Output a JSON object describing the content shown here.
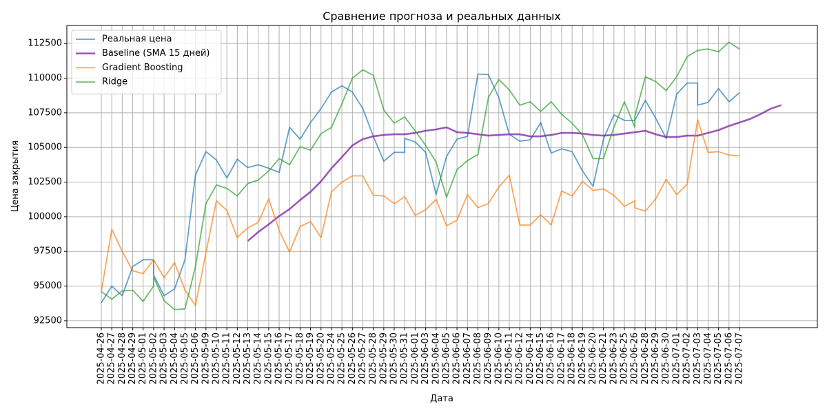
{
  "chart_data": {
    "type": "line",
    "title": "Сравнение прогноза и реальных данных",
    "xlabel": "Дата",
    "ylabel": "Цена закрытия",
    "ylim": [
      92000,
      113800
    ],
    "yticks": [
      92500,
      95000,
      97500,
      100000,
      102500,
      105000,
      107500,
      110000,
      112500
    ],
    "grid": true,
    "legend_position": "upper-left",
    "x_labels": [
      "2025-04-26",
      "2025-04-27",
      "2025-04-28",
      "2025-04-29",
      "2025-05-01",
      "2025-05-02",
      "2025-05-03",
      "2025-05-04",
      "2025-05-05",
      "2025-05-06",
      "2025-05-09",
      "2025-05-10",
      "2025-05-11",
      "2025-05-12",
      "2025-05-13",
      "2025-05-14",
      "2025-05-15",
      "2025-05-16",
      "2025-05-17",
      "2025-05-18",
      "2025-05-19",
      "2025-05-20",
      "2025-05-24",
      "2025-05-25",
      "2025-05-26",
      "2025-05-27",
      "2025-05-28",
      "2025-05-29",
      "2025-05-30",
      "2025-05-31",
      "2025-06-01",
      "2025-06-03",
      "2025-06-04",
      "2025-06-05",
      "2025-06-06",
      "2025-06-07",
      "2025-06-08",
      "2025-06-09",
      "2025-06-10",
      "2025-06-11",
      "2025-06-12",
      "2025-06-14",
      "2025-06-15",
      "2025-06-16",
      "2025-06-17",
      "2025-06-18",
      "2025-06-19",
      "2025-06-20",
      "2025-06-21",
      "2025-06-23",
      "2025-06-25",
      "2025-06-26",
      "2025-06-28",
      "2025-06-29",
      "2025-06-30",
      "2025-07-01",
      "2025-07-02",
      "2025-07-03",
      "2025-07-04",
      "2025-07-05",
      "2025-07-06",
      "2025-07-07"
    ],
    "x_min": 0,
    "x_max": 67.5,
    "series": [
      {
        "name": "Реальная цена",
        "color": "#1f77b4",
        "opacity": 0.7,
        "width": 1.8,
        "points": [
          [
            0,
            93800
          ],
          [
            1,
            95000
          ],
          [
            2,
            94300
          ],
          [
            3,
            96400
          ],
          [
            4,
            96900
          ],
          [
            5,
            96900
          ],
          [
            5,
            95800
          ],
          [
            6,
            94300
          ],
          [
            7,
            94800
          ],
          [
            8,
            96900
          ],
          [
            9,
            103000
          ],
          [
            10,
            104700
          ],
          [
            11,
            104100
          ],
          [
            12,
            102800
          ],
          [
            13,
            104150
          ],
          [
            14,
            103550
          ],
          [
            15,
            103750
          ],
          [
            16,
            103500
          ],
          [
            17,
            103200
          ],
          [
            18,
            106450
          ],
          [
            19,
            105600
          ],
          [
            20,
            106800
          ],
          [
            21,
            107800
          ],
          [
            22,
            109000
          ],
          [
            23,
            109450
          ],
          [
            24,
            109000
          ],
          [
            25,
            107800
          ],
          [
            26,
            105800
          ],
          [
            27,
            104000
          ],
          [
            28,
            104650
          ],
          [
            29,
            104650
          ],
          [
            29,
            105650
          ],
          [
            30,
            105400
          ],
          [
            31,
            104650
          ],
          [
            32,
            101600
          ],
          [
            33,
            104350
          ],
          [
            34,
            105600
          ],
          [
            35,
            105800
          ],
          [
            36,
            110300
          ],
          [
            37,
            110250
          ],
          [
            38,
            108600
          ],
          [
            39,
            105950
          ],
          [
            40,
            105450
          ],
          [
            41,
            105550
          ],
          [
            42,
            106800
          ],
          [
            43,
            104600
          ],
          [
            44,
            104900
          ],
          [
            45,
            104700
          ],
          [
            46,
            103300
          ],
          [
            47,
            102200
          ],
          [
            48,
            105600
          ],
          [
            49,
            107350
          ],
          [
            50,
            106950
          ],
          [
            51,
            106950
          ],
          [
            52,
            108400
          ],
          [
            53,
            107100
          ],
          [
            54,
            105650
          ],
          [
            55,
            108850
          ],
          [
            56,
            109650
          ],
          [
            57,
            109650
          ],
          [
            57,
            108050
          ],
          [
            58,
            108250
          ],
          [
            59,
            109250
          ],
          [
            60,
            108300
          ],
          [
            61,
            108950
          ]
        ]
      },
      {
        "name": "Baseline (SMA 15 дней)",
        "color": "#7b1fa2",
        "opacity": 0.75,
        "width": 2.6,
        "points": [
          [
            14,
            98250
          ],
          [
            15,
            98900
          ],
          [
            16,
            99450
          ],
          [
            17,
            100050
          ],
          [
            18,
            100550
          ],
          [
            19,
            101200
          ],
          [
            20,
            101800
          ],
          [
            21,
            102550
          ],
          [
            22,
            103500
          ],
          [
            23,
            104300
          ],
          [
            24,
            105150
          ],
          [
            25,
            105600
          ],
          [
            26,
            105800
          ],
          [
            27,
            105900
          ],
          [
            28,
            105950
          ],
          [
            29,
            105950
          ],
          [
            30,
            106050
          ],
          [
            31,
            106200
          ],
          [
            32,
            106300
          ],
          [
            33,
            106450
          ],
          [
            34,
            106100
          ],
          [
            35,
            106050
          ],
          [
            36,
            105950
          ],
          [
            37,
            105850
          ],
          [
            38,
            105900
          ],
          [
            39,
            105950
          ],
          [
            40,
            105950
          ],
          [
            41,
            105800
          ],
          [
            42,
            105800
          ],
          [
            43,
            105900
          ],
          [
            44,
            106050
          ],
          [
            45,
            106050
          ],
          [
            46,
            106000
          ],
          [
            47,
            105900
          ],
          [
            48,
            105850
          ],
          [
            49,
            105900
          ],
          [
            50,
            106000
          ],
          [
            51,
            106100
          ],
          [
            52,
            106200
          ],
          [
            53,
            105950
          ],
          [
            54,
            105750
          ],
          [
            55,
            105750
          ],
          [
            56,
            105850
          ],
          [
            57,
            105850
          ],
          [
            58,
            106050
          ],
          [
            59,
            106250
          ],
          [
            60,
            106550
          ],
          [
            61,
            106800
          ],
          [
            62,
            107050
          ],
          [
            63,
            107400
          ],
          [
            64,
            107800
          ],
          [
            65,
            108050
          ]
        ]
      },
      {
        "name": "Gradient Boosting",
        "color": "#ff7f0e",
        "opacity": 0.7,
        "width": 1.8,
        "points": [
          [
            0,
            94600
          ],
          [
            1,
            99100
          ],
          [
            2,
            97500
          ],
          [
            3,
            96100
          ],
          [
            4,
            95900
          ],
          [
            5,
            96900
          ],
          [
            6,
            95600
          ],
          [
            7,
            96700
          ],
          [
            8,
            94700
          ],
          [
            9,
            93600
          ],
          [
            10,
            97400
          ],
          [
            11,
            101150
          ],
          [
            12,
            100450
          ],
          [
            13,
            98500
          ],
          [
            14,
            99200
          ],
          [
            15,
            99600
          ],
          [
            16,
            101300
          ],
          [
            17,
            99000
          ],
          [
            18,
            97450
          ],
          [
            19,
            99300
          ],
          [
            20,
            99650
          ],
          [
            21,
            98500
          ],
          [
            22,
            101800
          ],
          [
            23,
            102500
          ],
          [
            24,
            102950
          ],
          [
            25,
            102950
          ],
          [
            26,
            101550
          ],
          [
            27,
            101500
          ],
          [
            28,
            100950
          ],
          [
            29,
            101450
          ],
          [
            30,
            100100
          ],
          [
            31,
            100500
          ],
          [
            32,
            101250
          ],
          [
            33,
            99350
          ],
          [
            34,
            99750
          ],
          [
            35,
            101600
          ],
          [
            36,
            100650
          ],
          [
            37,
            100950
          ],
          [
            38,
            102150
          ],
          [
            39,
            103000
          ],
          [
            40,
            99400
          ],
          [
            41,
            99400
          ],
          [
            42,
            100150
          ],
          [
            43,
            99400
          ],
          [
            44,
            101850
          ],
          [
            45,
            101500
          ],
          [
            46,
            102550
          ],
          [
            47,
            101900
          ],
          [
            48,
            102000
          ],
          [
            49,
            101550
          ],
          [
            50,
            100750
          ],
          [
            51,
            101150
          ],
          [
            51,
            100650
          ],
          [
            52,
            100400
          ],
          [
            53,
            101300
          ],
          [
            54,
            102700
          ],
          [
            55,
            101600
          ],
          [
            56,
            102350
          ],
          [
            57,
            107000
          ],
          [
            58,
            104650
          ],
          [
            59,
            104700
          ],
          [
            60,
            104450
          ],
          [
            61,
            104400
          ]
        ]
      },
      {
        "name": "Ridge",
        "color": "#2ca02c",
        "opacity": 0.7,
        "width": 1.8,
        "points": [
          [
            0,
            94600
          ],
          [
            1,
            94050
          ],
          [
            2,
            94650
          ],
          [
            3,
            94700
          ],
          [
            4,
            93900
          ],
          [
            5,
            95000
          ],
          [
            5,
            95650
          ],
          [
            6,
            93950
          ],
          [
            7,
            93300
          ],
          [
            8,
            93350
          ],
          [
            9,
            96400
          ],
          [
            10,
            100950
          ],
          [
            11,
            102300
          ],
          [
            12,
            102050
          ],
          [
            13,
            101500
          ],
          [
            14,
            102400
          ],
          [
            15,
            102650
          ],
          [
            16,
            103300
          ],
          [
            17,
            104200
          ],
          [
            18,
            103750
          ],
          [
            19,
            105050
          ],
          [
            20,
            104800
          ],
          [
            21,
            106000
          ],
          [
            22,
            106450
          ],
          [
            23,
            108150
          ],
          [
            24,
            110000
          ],
          [
            25,
            110600
          ],
          [
            26,
            110200
          ],
          [
            27,
            107700
          ],
          [
            28,
            106750
          ],
          [
            29,
            107200
          ],
          [
            30,
            106200
          ],
          [
            31,
            105150
          ],
          [
            32,
            103950
          ],
          [
            33,
            101400
          ],
          [
            34,
            103400
          ],
          [
            35,
            104050
          ],
          [
            36,
            104500
          ],
          [
            37,
            108600
          ],
          [
            38,
            109900
          ],
          [
            39,
            109150
          ],
          [
            40,
            108050
          ],
          [
            41,
            108300
          ],
          [
            42,
            107600
          ],
          [
            43,
            108300
          ],
          [
            44,
            107400
          ],
          [
            45,
            106750
          ],
          [
            46,
            105900
          ],
          [
            47,
            104200
          ],
          [
            48,
            104200
          ],
          [
            49,
            106450
          ],
          [
            50,
            108300
          ],
          [
            51,
            106450
          ],
          [
            51,
            107250
          ],
          [
            52,
            110100
          ],
          [
            53,
            109750
          ],
          [
            54,
            109100
          ],
          [
            55,
            110100
          ],
          [
            56,
            111550
          ],
          [
            57,
            112000
          ],
          [
            58,
            112100
          ],
          [
            59,
            111900
          ],
          [
            60,
            112600
          ],
          [
            61,
            112100
          ]
        ]
      }
    ]
  }
}
